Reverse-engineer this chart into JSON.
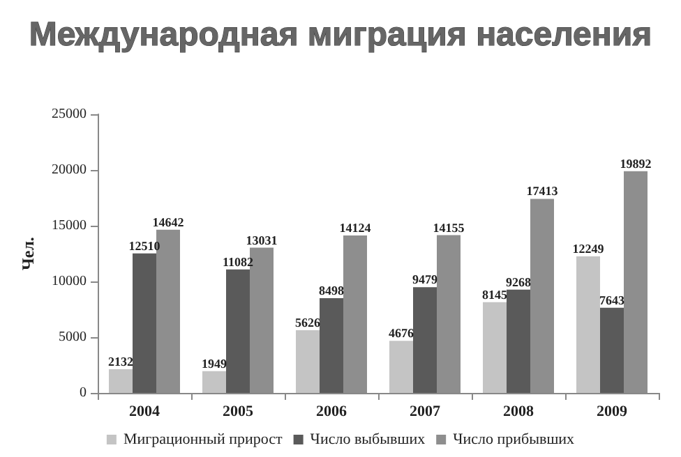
{
  "chart_data": {
    "type": "bar",
    "title": "Международная миграция населения",
    "ylabel": "Чел.",
    "categories": [
      "2004",
      "2005",
      "2006",
      "2007",
      "2008",
      "2009"
    ],
    "series": [
      {
        "name": "Миграционный прирост",
        "color": "#c4c4c4",
        "values": [
          2132,
          1949,
          5626,
          4676,
          8145,
          12249
        ]
      },
      {
        "name": "Число выбывших",
        "color": "#5a5a5a",
        "values": [
          12510,
          11082,
          8498,
          9479,
          9268,
          7643
        ]
      },
      {
        "name": "Число прибывших",
        "color": "#8e8e8e",
        "values": [
          14642,
          13031,
          14124,
          14155,
          17413,
          19892
        ]
      }
    ],
    "ylim": [
      0,
      25000
    ],
    "yticks": [
      0,
      5000,
      10000,
      15000,
      20000,
      25000
    ],
    "grid": false,
    "legend": "bottom",
    "data_labels": true
  }
}
